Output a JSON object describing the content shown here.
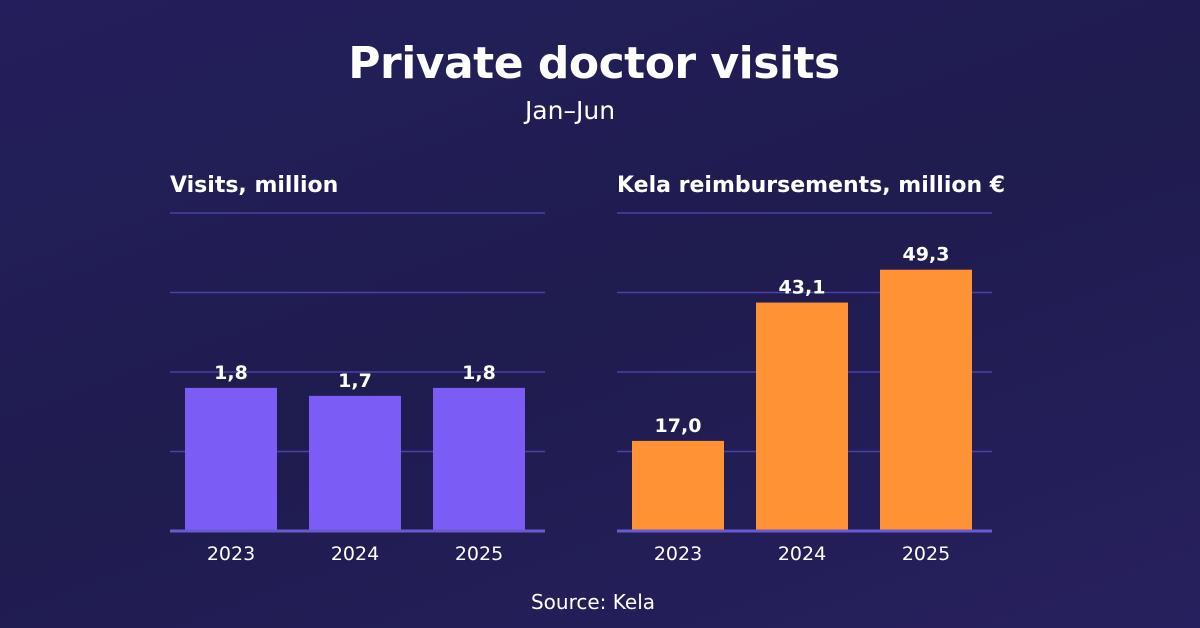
{
  "title": "Private doctor visits",
  "subtitle": "Jan–Jun",
  "source": "Source: Kela",
  "colors": {
    "background": "#221e55",
    "visits_bar": "#7b5cf5",
    "reimbursement_bar": "#ff9234",
    "gridline": "#4a40a8",
    "baseline": "#6a5ad0"
  },
  "chart_data": [
    {
      "type": "bar",
      "title": "Visits, million",
      "categories": [
        "2023",
        "2024",
        "2025"
      ],
      "values": [
        1.8,
        1.7,
        1.8
      ],
      "value_labels": [
        "1,8",
        "1,7",
        "1,8"
      ],
      "ylim": [
        0,
        4
      ],
      "grid": true
    },
    {
      "type": "bar",
      "title": "Kela reimbursements, million €",
      "categories": [
        "2023",
        "2024",
        "2025"
      ],
      "values": [
        17.0,
        43.1,
        49.3
      ],
      "value_labels": [
        "17,0",
        "43,1",
        "49,3"
      ],
      "ylim": [
        0,
        60
      ],
      "grid": true
    }
  ]
}
